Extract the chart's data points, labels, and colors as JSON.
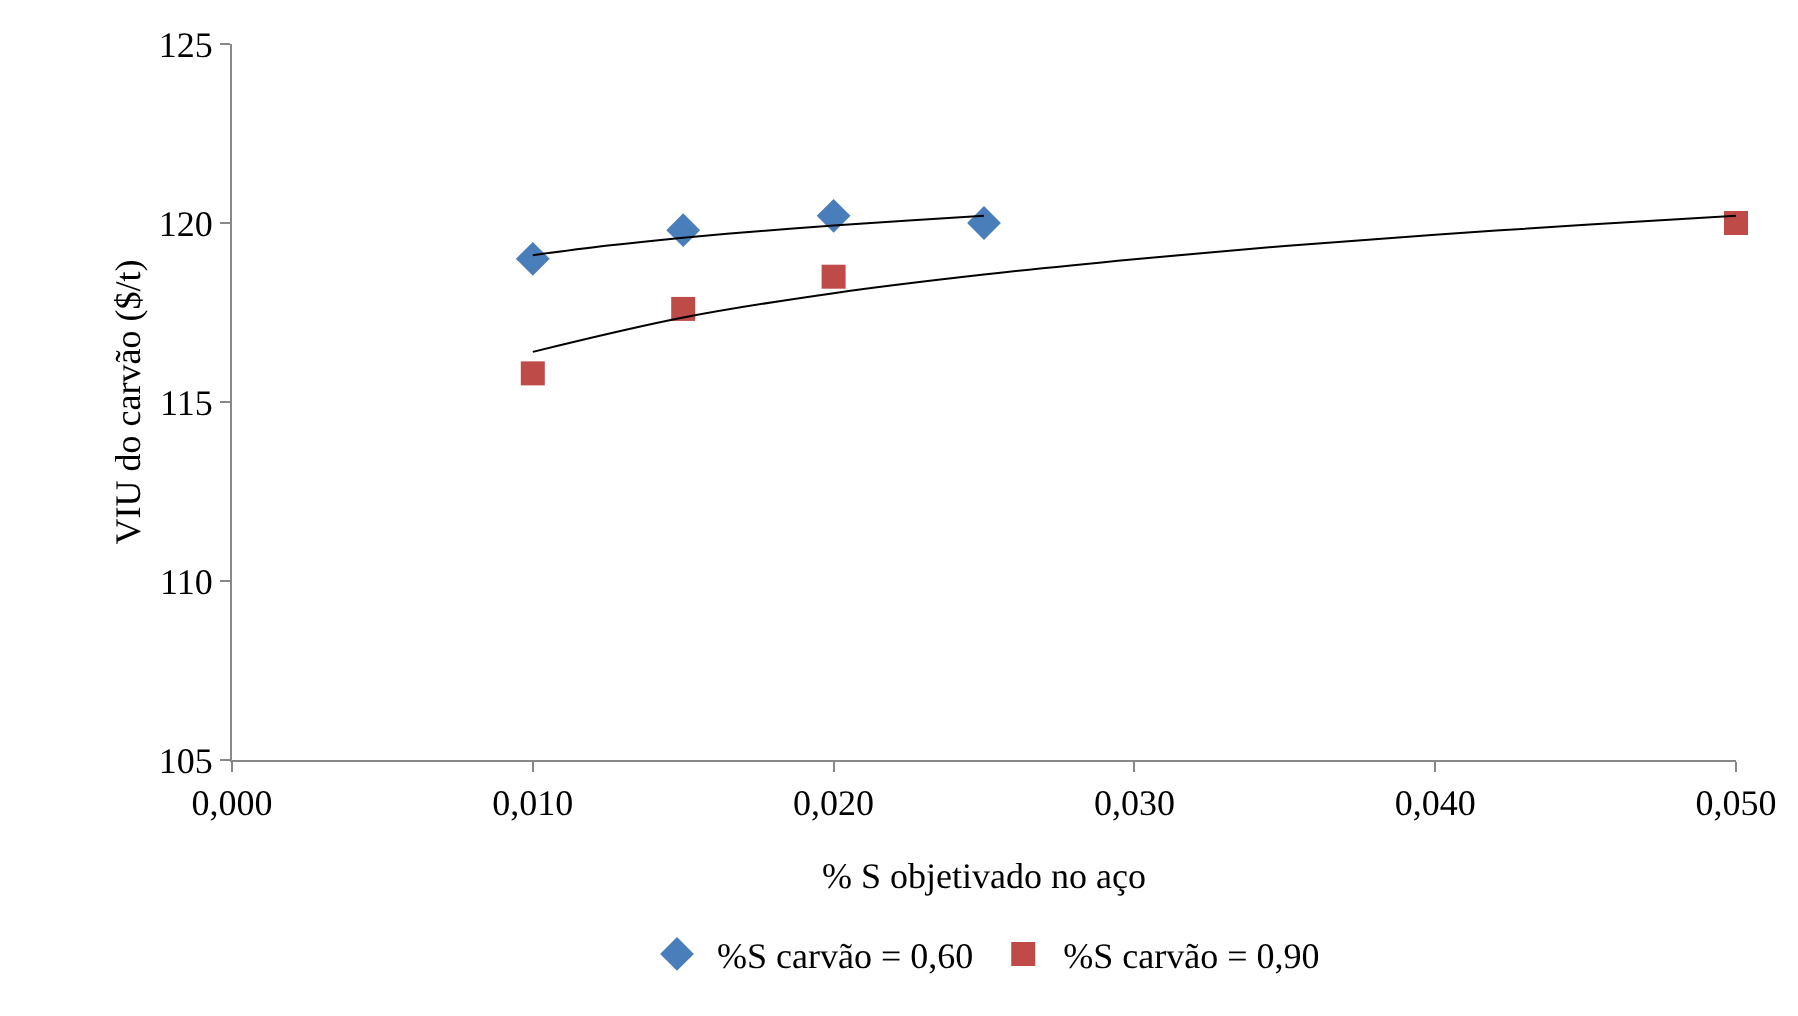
{
  "chart_data": {
    "type": "scatter",
    "xlabel": "% S objetivado no aço",
    "ylabel": "VIU do carvão ($/t)",
    "xlim": [
      0,
      0.05
    ],
    "xticks": [
      {
        "value": 0,
        "label": "0,000"
      },
      {
        "value": 0.01,
        "label": "0,010"
      },
      {
        "value": 0.02,
        "label": "0,020"
      },
      {
        "value": 0.03,
        "label": "0,030"
      },
      {
        "value": 0.04,
        "label": "0,040"
      },
      {
        "value": 0.05,
        "label": "0,050"
      }
    ],
    "ylim": [
      105,
      125
    ],
    "yticks": [
      105,
      110,
      115,
      120,
      125
    ],
    "grid": false,
    "legend": "bottom",
    "series": [
      {
        "name": "%S carvão = 0,60",
        "color": "#4a7ebb",
        "marker": "diamond",
        "x": [
          0.01,
          0.015,
          0.02,
          0.025
        ],
        "values": [
          119.0,
          119.8,
          120.2,
          120.0
        ]
      },
      {
        "name": "%S carvão = 0,90",
        "color": "#be4b48",
        "marker": "square",
        "x": [
          0.01,
          0.015,
          0.02,
          0.05
        ],
        "values": [
          115.8,
          117.6,
          118.5,
          120.0
        ]
      },
      {
        "type": "line",
        "color": "#000000",
        "marker": "none",
        "x": [
          0.01,
          0.0125,
          0.015,
          0.0175,
          0.02,
          0.0225,
          0.025
        ],
        "values": [
          119.1,
          119.37,
          119.59,
          119.77,
          119.93,
          120.07,
          120.2
        ]
      },
      {
        "type": "line",
        "color": "#000000",
        "marker": "none",
        "x": [
          0.01,
          0.015,
          0.02,
          0.025,
          0.03,
          0.035,
          0.04,
          0.045,
          0.05
        ],
        "values": [
          116.4,
          117.36,
          118.04,
          118.56,
          118.99,
          119.36,
          119.67,
          119.95,
          120.2
        ]
      }
    ]
  }
}
